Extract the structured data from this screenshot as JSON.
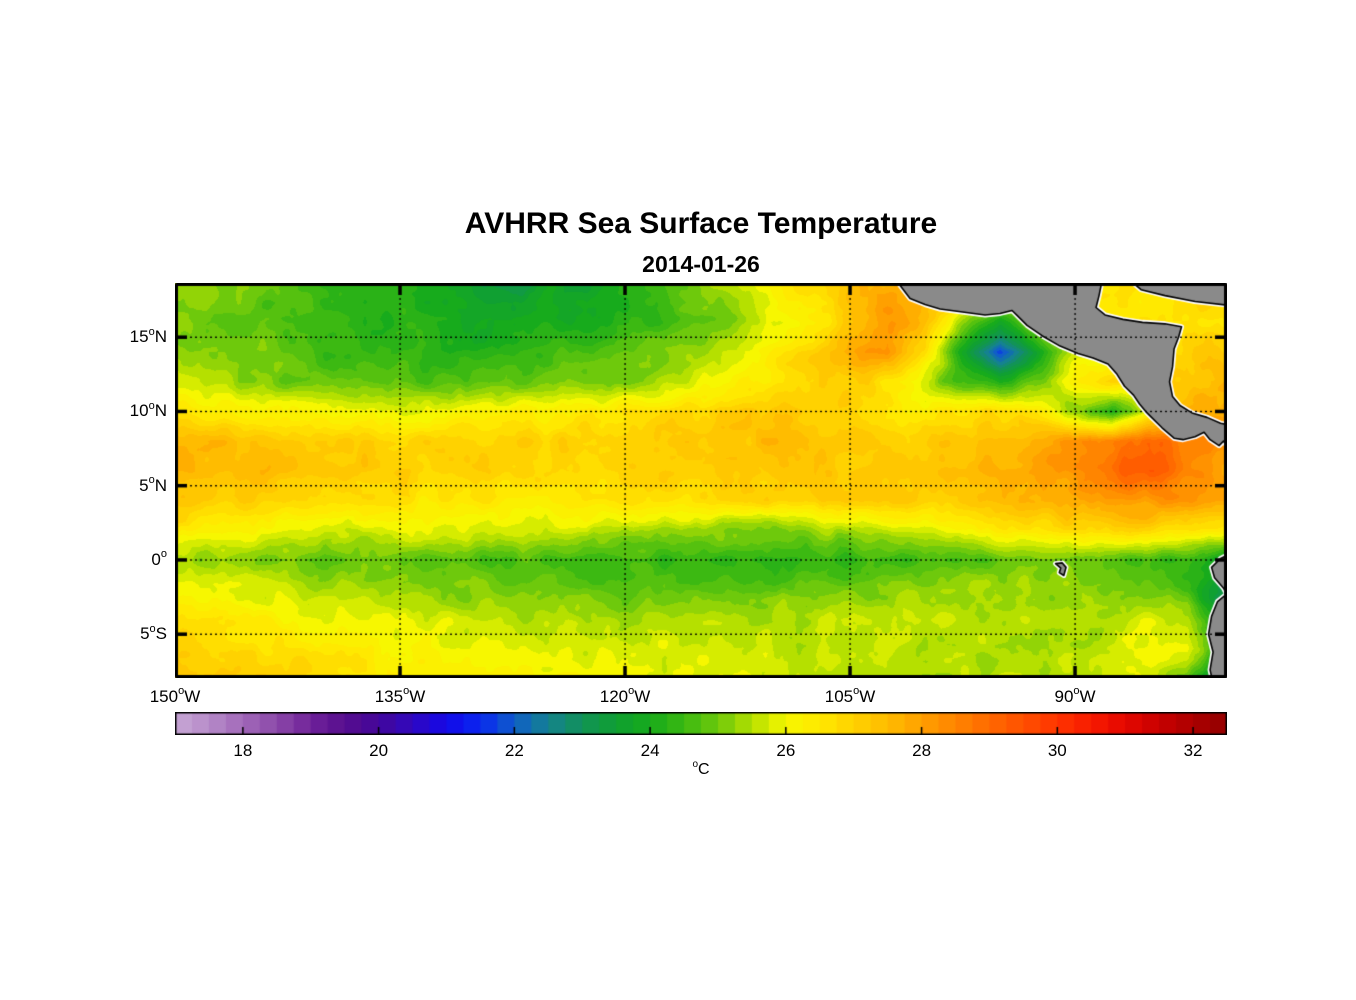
{
  "title": "AVHRR Sea Surface Temperature",
  "subtitle": "2014-01-26",
  "map": {
    "degree_symbol": "o",
    "lat_ticks": [
      {
        "value": "15",
        "hemi": "N",
        "lat": 15
      },
      {
        "value": "10",
        "hemi": "N",
        "lat": 10
      },
      {
        "value": "5",
        "hemi": "N",
        "lat": 5
      },
      {
        "value": "0",
        "hemi": "",
        "lat": 0
      },
      {
        "value": "5",
        "hemi": "S",
        "lat": -5
      }
    ],
    "lon_ticks": [
      {
        "value": "150",
        "hemi": "W",
        "lon": -150
      },
      {
        "value": "135",
        "hemi": "W",
        "lon": -135
      },
      {
        "value": "120",
        "hemi": "W",
        "lon": -120
      },
      {
        "value": "105",
        "hemi": "W",
        "lon": -105
      },
      {
        "value": "90",
        "hemi": "W",
        "lon": -90
      }
    ]
  },
  "colorbar": {
    "min": 17,
    "max": 32.5,
    "level_step": 0.25,
    "ticks": [
      {
        "label": "18",
        "value": 18
      },
      {
        "label": "20",
        "value": 20
      },
      {
        "label": "22",
        "value": 22
      },
      {
        "label": "24",
        "value": 24
      },
      {
        "label": "26",
        "value": 26
      },
      {
        "label": "28",
        "value": 28
      },
      {
        "label": "30",
        "value": 30
      },
      {
        "label": "32",
        "value": 32
      }
    ],
    "unit": {
      "degree": "o",
      "letter": "C"
    }
  },
  "chart_data": {
    "type": "heatmap",
    "title": "AVHRR Sea Surface Temperature",
    "date": "2014-01-26",
    "value_units": "degC",
    "value_range": [
      17,
      32.5
    ],
    "contour_interval": 0.25,
    "axis_bounds": {
      "lon_min": -150,
      "lon_max": -79.87,
      "lat_min": -7.95,
      "lat_max": 18.65
    },
    "gridlines": {
      "lats": [
        15,
        10,
        5,
        0,
        -5
      ],
      "lons": [
        -135,
        -120,
        -105,
        -90
      ]
    },
    "tick_lons": [
      -150,
      -135,
      -120,
      -105,
      -90
    ],
    "tick_lats": [
      15,
      10,
      5,
      0,
      -5
    ],
    "lons": [
      -150,
      -147.5,
      -145,
      -142.5,
      -140,
      -137.5,
      -135,
      -132.5,
      -130,
      -127.5,
      -125,
      -122.5,
      -120,
      -117.5,
      -115,
      -112.5,
      -110,
      -107.5,
      -105,
      -102.5,
      -100,
      -97.5,
      -95,
      -92.5,
      -90,
      -87.5,
      -85,
      -82.5,
      -80
    ],
    "lats": [
      18.5,
      16,
      14,
      12,
      10,
      8,
      6,
      4,
      2,
      0,
      -2,
      -4,
      -6,
      -8
    ],
    "sst": [
      [
        25.4,
        25.2,
        25.0,
        24.8,
        24.5,
        24.4,
        24.3,
        24.1,
        23.5,
        23.0,
        23.9,
        23.4,
        24.2,
        24.6,
        25.0,
        25.6,
        26.2,
        26.8,
        27.3,
        27.8,
        28.0,
        27.5,
        27.0,
        26.8,
        26.6,
        26.4,
        26.6,
        26.8,
        26.9
      ],
      [
        25.2,
        25.0,
        24.8,
        24.6,
        24.4,
        24.3,
        24.2,
        24.0,
        23.9,
        23.9,
        24.0,
        24.0,
        24.2,
        24.4,
        24.8,
        25.2,
        25.8,
        26.4,
        27.2,
        28.0,
        27.6,
        25.2,
        23.8,
        25.5,
        26.3,
        26.5,
        26.6,
        26.7,
        26.8
      ],
      [
        25.3,
        25.1,
        25.0,
        24.8,
        24.6,
        24.5,
        24.4,
        24.3,
        24.2,
        24.3,
        24.5,
        24.6,
        24.8,
        25.0,
        25.4,
        25.8,
        26.4,
        27.0,
        27.8,
        28.3,
        26.8,
        23.6,
        21.7,
        23.6,
        25.8,
        26.2,
        26.8,
        27.0,
        27.2
      ],
      [
        25.6,
        25.4,
        25.2,
        25.0,
        24.9,
        24.8,
        24.8,
        24.7,
        24.7,
        24.8,
        25.0,
        25.1,
        25.2,
        25.4,
        25.8,
        26.2,
        26.6,
        27.0,
        27.2,
        26.6,
        25.6,
        24.6,
        24.0,
        25.0,
        26.2,
        26.8,
        27.0,
        27.4,
        27.6
      ],
      [
        26.6,
        26.4,
        26.3,
        26.2,
        26.1,
        26.0,
        25.9,
        26.0,
        26.1,
        26.2,
        26.3,
        26.4,
        26.6,
        26.8,
        27.0,
        27.2,
        27.3,
        27.2,
        26.9,
        26.5,
        26.3,
        26.6,
        26.8,
        26.4,
        25.2,
        24.1,
        26.0,
        27.6,
        27.8
      ],
      [
        27.6,
        27.5,
        27.4,
        27.3,
        27.2,
        27.1,
        27.0,
        27.0,
        27.0,
        27.0,
        27.0,
        27.0,
        27.1,
        27.2,
        27.3,
        27.3,
        27.4,
        27.3,
        27.2,
        27.0,
        27.0,
        27.2,
        27.5,
        27.8,
        28.1,
        28.6,
        29.2,
        28.6,
        28.2
      ],
      [
        27.7,
        27.6,
        27.5,
        27.4,
        27.3,
        27.2,
        27.1,
        27.0,
        27.0,
        26.9,
        26.9,
        26.9,
        27.0,
        27.0,
        27.1,
        27.1,
        27.2,
        27.2,
        27.2,
        27.2,
        27.3,
        27.5,
        27.7,
        28.0,
        28.3,
        28.8,
        29.6,
        28.6,
        28.0
      ],
      [
        27.2,
        27.1,
        27.0,
        26.9,
        26.8,
        26.7,
        26.6,
        26.5,
        26.5,
        26.4,
        26.4,
        26.5,
        26.6,
        26.7,
        26.8,
        26.9,
        27.0,
        27.0,
        27.0,
        27.0,
        27.1,
        27.2,
        27.4,
        27.6,
        27.9,
        28.1,
        28.2,
        28.1,
        27.9
      ],
      [
        26.4,
        26.3,
        26.2,
        26.0,
        25.7,
        25.6,
        25.8,
        25.9,
        25.8,
        25.8,
        25.7,
        25.6,
        25.4,
        25.3,
        25.2,
        25.1,
        25.0,
        25.2,
        25.4,
        25.6,
        25.8,
        26.1,
        26.4,
        26.7,
        26.8,
        26.9,
        26.9,
        26.8,
        26.6
      ],
      [
        25.3,
        25.2,
        25.1,
        25.0,
        24.9,
        24.9,
        24.8,
        24.8,
        24.7,
        24.6,
        24.6,
        24.5,
        24.5,
        24.4,
        24.4,
        24.4,
        24.3,
        24.3,
        24.4,
        24.5,
        24.6,
        24.7,
        24.8,
        24.9,
        24.9,
        24.8,
        24.7,
        24.3,
        23.8
      ],
      [
        26.0,
        25.9,
        25.8,
        25.6,
        25.5,
        25.4,
        25.3,
        25.2,
        25.1,
        25.0,
        24.9,
        24.9,
        24.8,
        24.8,
        24.8,
        24.9,
        24.9,
        25.0,
        25.1,
        25.2,
        25.3,
        25.4,
        25.4,
        25.3,
        25.2,
        25.1,
        25.0,
        24.6,
        22.8
      ],
      [
        26.8,
        26.6,
        26.4,
        26.2,
        26.0,
        25.9,
        25.8,
        25.7,
        25.6,
        25.5,
        25.5,
        25.4,
        25.4,
        25.4,
        25.4,
        25.5,
        25.5,
        25.6,
        25.6,
        25.6,
        25.6,
        25.6,
        25.5,
        25.4,
        25.4,
        25.5,
        25.8,
        25.6,
        23.2
      ],
      [
        27.0,
        26.9,
        26.8,
        26.6,
        26.5,
        26.4,
        26.2,
        26.1,
        26.0,
        25.9,
        25.9,
        25.8,
        25.8,
        25.8,
        25.7,
        25.7,
        25.7,
        25.6,
        25.6,
        25.6,
        25.5,
        25.5,
        25.4,
        25.4,
        25.5,
        25.7,
        26.0,
        26.0,
        23.8
      ],
      [
        27.4,
        27.3,
        27.1,
        26.9,
        26.8,
        26.6,
        26.5,
        26.4,
        26.3,
        26.2,
        26.1,
        26.0,
        26.0,
        25.9,
        25.9,
        25.8,
        25.8,
        25.7,
        25.7,
        25.6,
        25.6,
        25.5,
        25.5,
        25.5,
        25.6,
        25.8,
        25.9,
        24.8,
        23.0
      ]
    ],
    "colormap": {
      "stops": [
        [
          17.0,
          "#c7a7d6"
        ],
        [
          17.5,
          "#b78cc9"
        ],
        [
          18.0,
          "#a269ba"
        ],
        [
          18.5,
          "#8c49a9"
        ],
        [
          19.0,
          "#70239a"
        ],
        [
          19.5,
          "#570e8e"
        ],
        [
          20.0,
          "#43079a"
        ],
        [
          20.5,
          "#3109c0"
        ],
        [
          21.0,
          "#1408e8"
        ],
        [
          21.5,
          "#0a28f0"
        ],
        [
          22.0,
          "#105ec8"
        ],
        [
          22.5,
          "#158290"
        ],
        [
          23.0,
          "#129357"
        ],
        [
          23.5,
          "#10a032"
        ],
        [
          24.0,
          "#17ab1c"
        ],
        [
          24.5,
          "#3cb912"
        ],
        [
          25.0,
          "#6ec90c"
        ],
        [
          25.5,
          "#b5e000"
        ],
        [
          26.0,
          "#f7f700"
        ],
        [
          26.5,
          "#ffe900"
        ],
        [
          27.0,
          "#ffd200"
        ],
        [
          27.5,
          "#ffbc00"
        ],
        [
          28.0,
          "#ffa000"
        ],
        [
          28.5,
          "#ff8500"
        ],
        [
          29.0,
          "#ff6a00"
        ],
        [
          29.5,
          "#ff5000"
        ],
        [
          30.0,
          "#ff3500"
        ],
        [
          30.5,
          "#f81b00"
        ],
        [
          31.0,
          "#e40800"
        ],
        [
          31.5,
          "#c90000"
        ],
        [
          32.0,
          "#ac0000"
        ],
        [
          32.5,
          "#930000"
        ]
      ]
    },
    "land_color": "#8a8a8a",
    "coast_outline_color": "#000000",
    "coast_halo_color": "#ffffff",
    "land_polygons": {
      "central_america": [
        [
          -101.9,
          18.8
        ],
        [
          -101.0,
          17.6
        ],
        [
          -100.0,
          17.2
        ],
        [
          -99.0,
          16.9
        ],
        [
          -97.5,
          16.7
        ],
        [
          -96.0,
          16.5
        ],
        [
          -95.0,
          16.6
        ],
        [
          -94.2,
          16.8
        ],
        [
          -93.8,
          16.4
        ],
        [
          -93.2,
          15.8
        ],
        [
          -92.2,
          15.1
        ],
        [
          -91.0,
          14.4
        ],
        [
          -89.8,
          13.9
        ],
        [
          -88.8,
          13.6
        ],
        [
          -87.8,
          13.2
        ],
        [
          -87.2,
          12.5
        ],
        [
          -86.7,
          11.7
        ],
        [
          -86.1,
          11.1
        ],
        [
          -85.7,
          10.5
        ],
        [
          -85.2,
          9.9
        ],
        [
          -84.9,
          9.6
        ],
        [
          -84.2,
          8.9
        ],
        [
          -83.4,
          8.2
        ],
        [
          -82.8,
          8.1
        ],
        [
          -82.0,
          8.3
        ],
        [
          -81.4,
          8.6
        ],
        [
          -81.0,
          8.1
        ],
        [
          -80.4,
          7.7
        ],
        [
          -80.1,
          8.0
        ],
        [
          -79.6,
          7.3
        ],
        [
          -79.3,
          7.2
        ],
        [
          -79.3,
          9.0
        ],
        [
          -80.3,
          9.2
        ],
        [
          -81.2,
          9.6
        ],
        [
          -82.2,
          9.9
        ],
        [
          -83.0,
          10.4
        ],
        [
          -83.5,
          11.0
        ],
        [
          -83.7,
          12.0
        ],
        [
          -83.5,
          13.0
        ],
        [
          -83.4,
          14.2
        ],
        [
          -83.1,
          15.0
        ],
        [
          -82.9,
          15.7
        ],
        [
          -84.0,
          15.9
        ],
        [
          -85.5,
          16.0
        ],
        [
          -86.8,
          16.2
        ],
        [
          -88.0,
          16.5
        ],
        [
          -88.6,
          17.0
        ],
        [
          -88.4,
          17.8
        ],
        [
          -88.2,
          18.8
        ]
      ],
      "yucatan_sliver": [
        [
          -86.3,
          18.8
        ],
        [
          -85.6,
          18.2
        ],
        [
          -84.0,
          17.8
        ],
        [
          -82.0,
          17.4
        ],
        [
          -79.3,
          17.1
        ],
        [
          -79.3,
          18.8
        ]
      ],
      "galapagos": [
        [
          -91.3,
          -0.25
        ],
        [
          -90.85,
          -0.2
        ],
        [
          -90.6,
          -0.5
        ],
        [
          -90.75,
          -1.05
        ],
        [
          -91.05,
          -0.85
        ],
        [
          -90.95,
          -0.55
        ]
      ],
      "south_america": [
        [
          -79.3,
          0.6
        ],
        [
          -80.3,
          0.1
        ],
        [
          -80.9,
          -0.5
        ],
        [
          -80.7,
          -1.2
        ],
        [
          -80.1,
          -1.9
        ],
        [
          -79.9,
          -2.3
        ],
        [
          -80.5,
          -2.8
        ],
        [
          -80.9,
          -3.8
        ],
        [
          -81.1,
          -5.0
        ],
        [
          -80.8,
          -6.2
        ],
        [
          -81.0,
          -7.4
        ],
        [
          -80.8,
          -8.3
        ],
        [
          -79.3,
          -8.3
        ]
      ]
    }
  }
}
